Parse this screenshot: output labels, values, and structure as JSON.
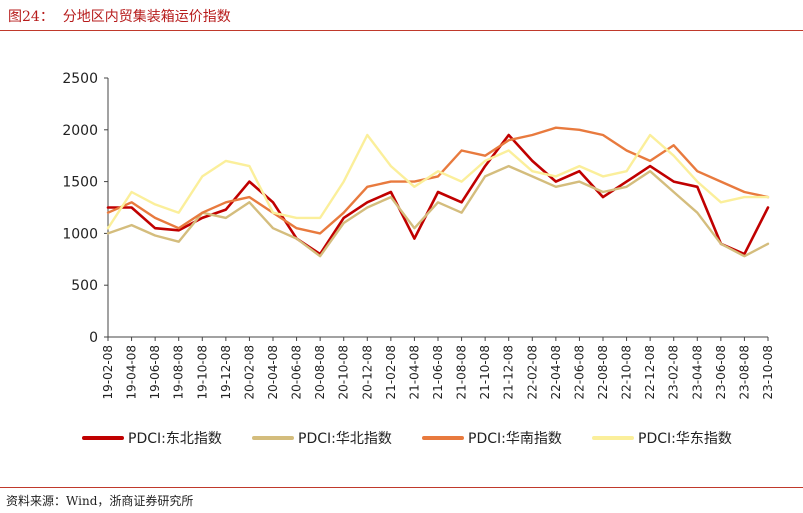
{
  "header": {
    "title": "图24：  分地区内贸集装箱运价指数"
  },
  "footer": {
    "source": "资料来源：Wind，浙商证券研究所"
  },
  "chart_data": {
    "type": "line",
    "title": "分地区内贸集装箱运价指数",
    "xlabel": "",
    "ylabel": "",
    "ylim": [
      0,
      2500
    ],
    "yticks": [
      0,
      500,
      1000,
      1500,
      2000,
      2500
    ],
    "grid": false,
    "legend_position": "bottom",
    "x": [
      "19-02-08",
      "19-04-08",
      "19-06-08",
      "19-08-08",
      "19-10-08",
      "19-12-08",
      "20-02-08",
      "20-04-08",
      "20-06-08",
      "20-08-08",
      "20-10-08",
      "20-12-08",
      "21-02-08",
      "21-04-08",
      "21-06-08",
      "21-08-08",
      "21-10-08",
      "21-12-08",
      "22-02-08",
      "22-04-08",
      "22-06-08",
      "22-08-08",
      "22-10-08",
      "22-12-08",
      "23-02-08",
      "23-04-08",
      "23-06-08",
      "23-08-08",
      "23-10-08"
    ],
    "series": [
      {
        "name": "PDCI:东北指数",
        "color": "#c00000",
        "values": [
          1250,
          1250,
          1050,
          1030,
          1150,
          1230,
          1500,
          1300,
          950,
          800,
          1150,
          1300,
          1400,
          950,
          1400,
          1300,
          1650,
          1950,
          1700,
          1500,
          1600,
          1350,
          1500,
          1650,
          1500,
          1450,
          900,
          800,
          1250
        ]
      },
      {
        "name": "PDCI:华北指数",
        "color": "#d4bd7d",
        "values": [
          1000,
          1080,
          980,
          920,
          1200,
          1150,
          1300,
          1050,
          950,
          780,
          1100,
          1250,
          1350,
          1050,
          1300,
          1200,
          1550,
          1650,
          1550,
          1450,
          1500,
          1400,
          1450,
          1600,
          1400,
          1200,
          900,
          780,
          900
        ]
      },
      {
        "name": "PDCI:华南指数",
        "color": "#e87a3e",
        "values": [
          1200,
          1300,
          1150,
          1050,
          1200,
          1300,
          1350,
          1200,
          1050,
          1000,
          1200,
          1450,
          1500,
          1500,
          1550,
          1800,
          1750,
          1900,
          1950,
          2020,
          2000,
          1950,
          1800,
          1700,
          1850,
          1600,
          1500,
          1400,
          1350
        ]
      },
      {
        "name": "PDCI:华东指数",
        "color": "#fbef9b",
        "values": [
          1050,
          1400,
          1280,
          1200,
          1550,
          1700,
          1650,
          1200,
          1150,
          1150,
          1500,
          1950,
          1650,
          1450,
          1600,
          1500,
          1700,
          1800,
          1600,
          1550,
          1650,
          1550,
          1600,
          1950,
          1750,
          1500,
          1300,
          1350,
          1350
        ]
      }
    ]
  }
}
